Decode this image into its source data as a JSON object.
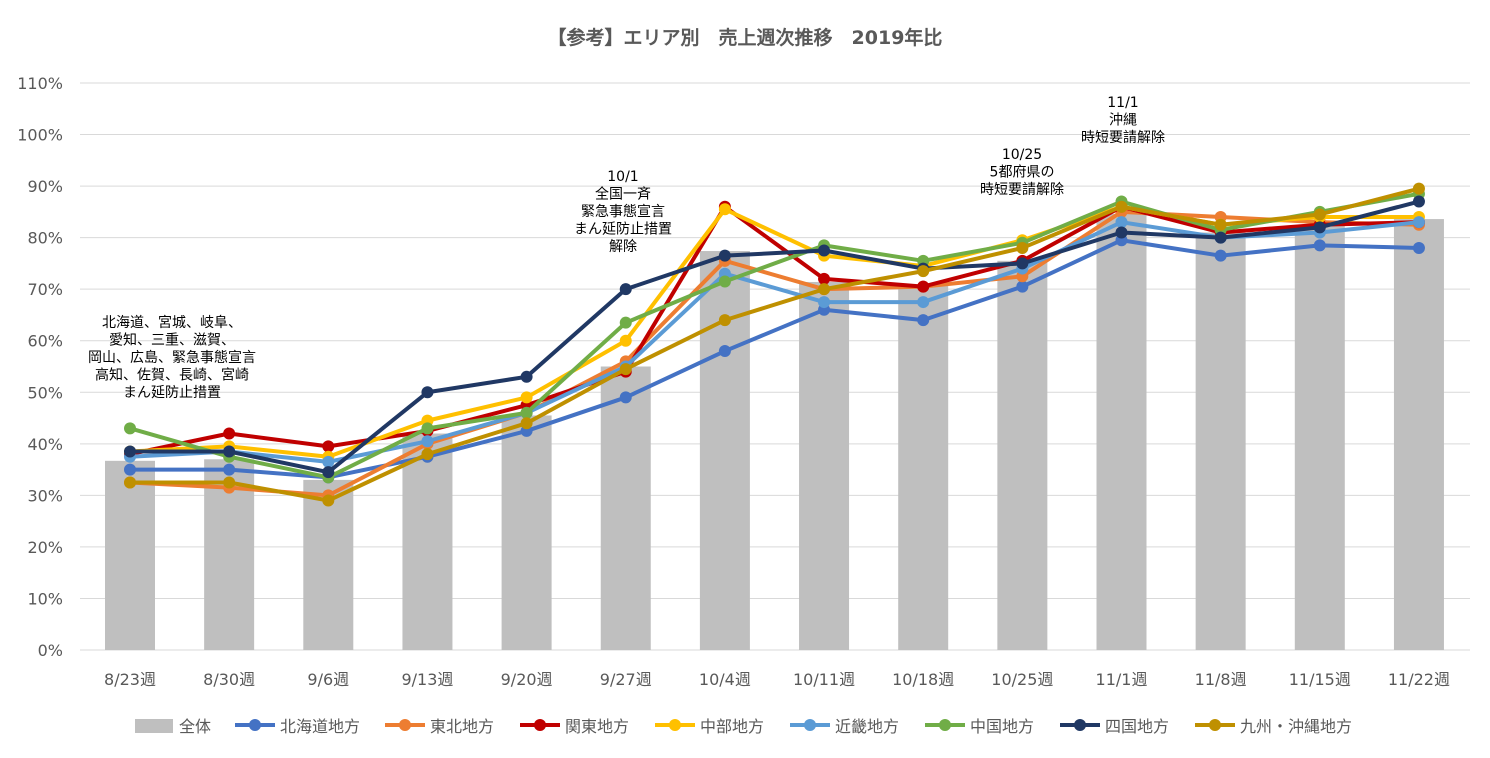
{
  "chart_data": {
    "type": "bar+line",
    "title": "【参考】エリア別　売上週次推移　2019年比",
    "xlabel": "",
    "ylabel": "",
    "ylim": [
      0,
      110
    ],
    "yticks": [
      "0%",
      "10%",
      "20%",
      "30%",
      "40%",
      "50%",
      "60%",
      "70%",
      "80%",
      "90%",
      "100%",
      "110%"
    ],
    "grid": true,
    "legend_position": "bottom",
    "categories": [
      "8/23週",
      "8/30週",
      "9/6週",
      "9/13週",
      "9/20週",
      "9/27週",
      "10/4週",
      "10/11週",
      "10/18週",
      "10/25週",
      "11/1週",
      "11/8週",
      "11/15週",
      "11/22週"
    ],
    "bar_series": {
      "name": "全体",
      "color": "#BFBFBF",
      "values": [
        36.7,
        37,
        33,
        42,
        45.5,
        55,
        77.4,
        71.4,
        70.8,
        75.5,
        84.6,
        81,
        82.4,
        83.6
      ]
    },
    "series": [
      {
        "name": "北海道地方",
        "color": "#4472C4",
        "values": [
          35,
          35,
          33.5,
          37.5,
          42.5,
          49,
          58,
          66,
          64,
          70.5,
          79.5,
          76.5,
          78.5,
          78
        ]
      },
      {
        "name": "東北地方",
        "color": "#ED7D31",
        "values": [
          32.5,
          31.5,
          30,
          40,
          46,
          56,
          75.5,
          70,
          70.5,
          72.5,
          85,
          84,
          83,
          82.5
        ]
      },
      {
        "name": "関東地方",
        "color": "#C00000",
        "values": [
          38,
          42,
          39.5,
          42.5,
          47.5,
          54,
          86,
          72,
          70.5,
          75.5,
          86,
          81,
          82.5,
          83
        ]
      },
      {
        "name": "中部地方",
        "color": "#FFC000",
        "values": [
          38.5,
          39.5,
          37.5,
          44.5,
          49,
          60,
          85.5,
          76.5,
          74.5,
          79.5,
          86,
          82.5,
          84,
          84
        ]
      },
      {
        "name": "近畿地方",
        "color": "#5B9BD5",
        "values": [
          37.5,
          38.5,
          36.5,
          40.5,
          46,
          55,
          73,
          67.5,
          67.5,
          74,
          83,
          80,
          81,
          83
        ]
      },
      {
        "name": "中国地方",
        "color": "#70AD47",
        "values": [
          43,
          37.5,
          33.5,
          43,
          46,
          63.5,
          71.5,
          78.5,
          75.5,
          79,
          87,
          81.5,
          85,
          88.5
        ]
      },
      {
        "name": "四国地方",
        "color": "#203864",
        "values": [
          38.5,
          38.5,
          34.5,
          50,
          53,
          70,
          76.5,
          77.5,
          74,
          75,
          81,
          80,
          82,
          87
        ]
      },
      {
        "name": "九州・沖縄地方",
        "color": "#BF9000",
        "values": [
          32.5,
          32.5,
          29,
          38,
          44,
          54.5,
          64,
          70,
          73.5,
          78,
          86,
          82.5,
          84.5,
          89.5
        ]
      }
    ],
    "annotations": [
      {
        "category": "8/23週",
        "lines": [
          "北海道、宮城、岐阜、",
          "愛知、三重、滋賀、",
          "岡山、広島、緊急事態宣言",
          "高知、佐賀、長崎、宮崎",
          "まん延防止措置"
        ]
      },
      {
        "category": "9/27週",
        "lines": [
          "10/1",
          "全国一斉",
          "緊急事態宣言",
          "まん延防止措置",
          "解除"
        ]
      },
      {
        "category": "10/25週",
        "lines": [
          "10/25",
          "5都府県の",
          "時短要請解除"
        ]
      },
      {
        "category": "11/1週",
        "lines": [
          "11/1",
          "沖縄",
          "時短要請解除"
        ]
      }
    ]
  }
}
